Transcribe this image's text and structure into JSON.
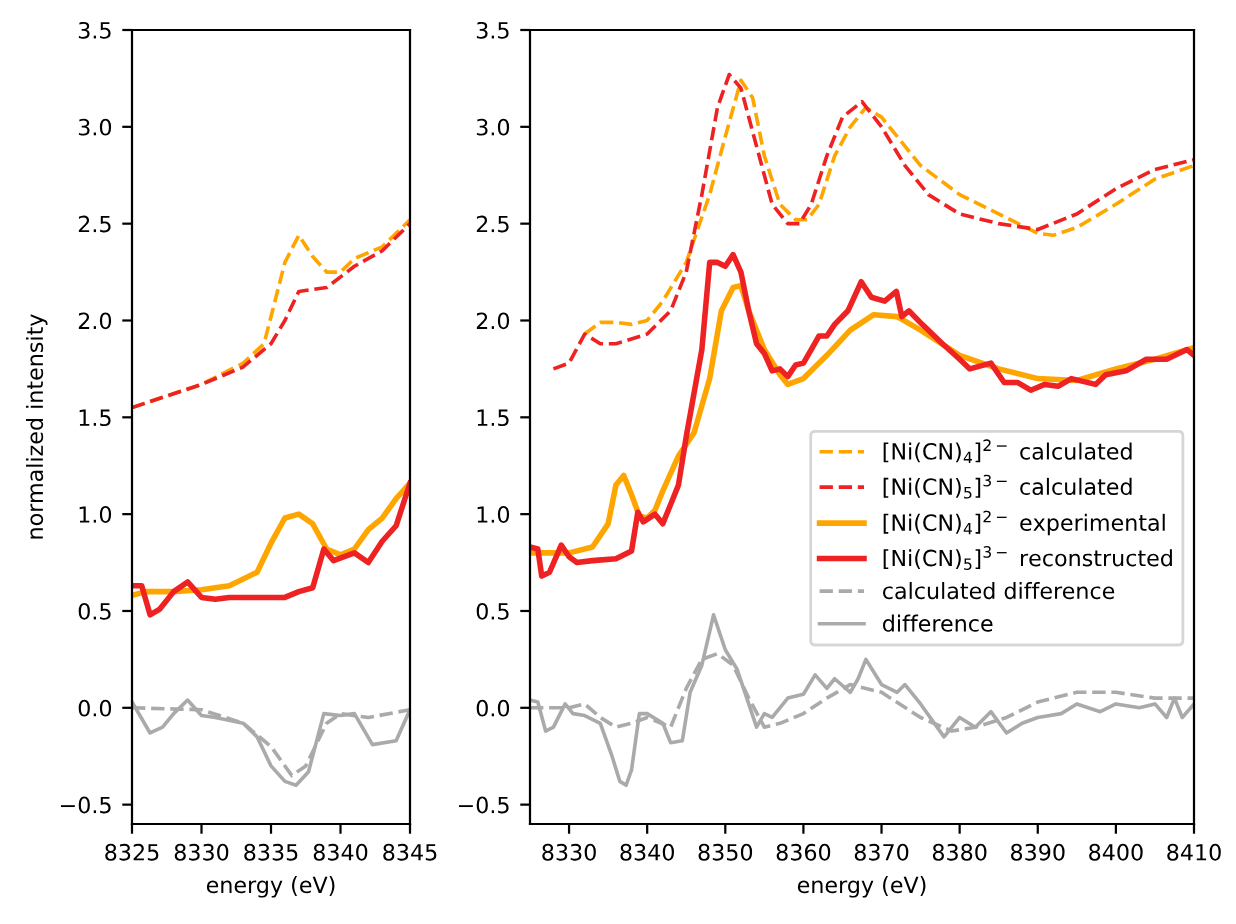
{
  "chart_data": [
    {
      "type": "line",
      "xlabel": "energy (eV)",
      "ylabel": "normalized intensity",
      "xlim": [
        8325,
        8345
      ],
      "xticks": [
        8325,
        8330,
        8335,
        8340,
        8345
      ],
      "ylim": [
        -0.6,
        3.5
      ],
      "yticks": [
        {
          "value": -0.5,
          "label": "−0.5"
        },
        {
          "value": 0,
          "label": "0.0"
        },
        0.5,
        {
          "value": 1,
          "label": "1.0"
        },
        1.5,
        {
          "value": 2,
          "label": "2.0"
        },
        2.5,
        {
          "value": 3,
          "label": "3.0"
        },
        3.5
      ],
      "grid": false,
      "legend": false,
      "series": [
        {
          "color": "#ffa500",
          "line_style": "dashed",
          "x": [
            8325,
            8330,
            8333,
            8334.5,
            8336,
            8337,
            8338,
            8339,
            8340,
            8341,
            8343,
            8345
          ],
          "values": [
            1.55,
            1.67,
            1.78,
            1.88,
            2.3,
            2.44,
            2.33,
            2.25,
            2.25,
            2.32,
            2.38,
            2.52
          ]
        },
        {
          "color": "#ee2222",
          "line_style": "dashed",
          "x": [
            8325,
            8330,
            8333,
            8335,
            8336,
            8337,
            8339,
            8341,
            8343,
            8345
          ],
          "values": [
            1.55,
            1.67,
            1.76,
            1.88,
            2.0,
            2.15,
            2.17,
            2.28,
            2.36,
            2.5
          ]
        },
        {
          "color": "#ffa500",
          "line_style": "solid",
          "x": [
            8325,
            8326,
            8328,
            8330,
            8332,
            8334,
            8335,
            8336,
            8337,
            8338,
            8339,
            8340,
            8341,
            8342,
            8343,
            8344,
            8345
          ],
          "values": [
            0.58,
            0.6,
            0.6,
            0.61,
            0.63,
            0.7,
            0.85,
            0.98,
            1.0,
            0.95,
            0.82,
            0.79,
            0.82,
            0.92,
            0.98,
            1.08,
            1.16
          ]
        },
        {
          "color": "#ee2222",
          "line_style": "solid",
          "x": [
            8325,
            8325.7,
            8326.3,
            8327,
            8328,
            8329,
            8330,
            8331,
            8332,
            8334,
            8336,
            8337,
            8338,
            8338.8,
            8339.5,
            8341,
            8342,
            8343,
            8344,
            8345
          ],
          "values": [
            0.63,
            0.63,
            0.48,
            0.51,
            0.6,
            0.65,
            0.57,
            0.56,
            0.57,
            0.57,
            0.57,
            0.6,
            0.62,
            0.82,
            0.76,
            0.8,
            0.75,
            0.86,
            0.94,
            1.16
          ]
        },
        {
          "color": "#aaaaaa",
          "line_style": "dashed",
          "x": [
            8325,
            8330,
            8333,
            8335,
            8336.5,
            8337.5,
            8339,
            8340,
            8342,
            8345
          ],
          "values": [
            0.0,
            -0.01,
            -0.08,
            -0.2,
            -0.35,
            -0.3,
            -0.08,
            -0.03,
            -0.05,
            -0.01
          ]
        },
        {
          "color": "#aaaaaa",
          "line_style": "solid",
          "x": [
            8325,
            8326.3,
            8327.2,
            8328,
            8329,
            8330,
            8331,
            8333,
            8334,
            8335,
            8336,
            8336.8,
            8337.7,
            8338.8,
            8340,
            8341,
            8342.3,
            8344,
            8345
          ],
          "values": [
            0.03,
            -0.13,
            -0.1,
            -0.03,
            0.04,
            -0.04,
            -0.05,
            -0.08,
            -0.15,
            -0.3,
            -0.38,
            -0.4,
            -0.33,
            -0.03,
            -0.04,
            -0.03,
            -0.19,
            -0.17,
            -0.01
          ]
        }
      ]
    },
    {
      "type": "line",
      "xlabel": "energy (eV)",
      "xlim": [
        8325,
        8410
      ],
      "xticks": [
        8330,
        8340,
        8350,
        8360,
        8370,
        8380,
        8390,
        8400,
        8410
      ],
      "ylim": [
        -0.6,
        3.5
      ],
      "yticks": [
        {
          "value": -0.5,
          "label": "−0.5"
        },
        {
          "value": 0,
          "label": "0.0"
        },
        0.5,
        {
          "value": 1,
          "label": "1.0"
        },
        1.5,
        {
          "value": 2,
          "label": "2.0"
        },
        2.5,
        {
          "value": 3,
          "label": "3.0"
        },
        3.5
      ],
      "grid": false,
      "legend": "right",
      "series": [
        {
          "name": "[Ni(CN)$_{4}$]$^{2−}$ calculated",
          "color": "#ffa500",
          "line_style": "dashed",
          "x": [
            8332,
            8334,
            8336,
            8338,
            8340,
            8342,
            8345,
            8348,
            8350,
            8352,
            8353.5,
            8355,
            8357,
            8359,
            8360.5,
            8362,
            8364,
            8366,
            8368,
            8370,
            8375,
            8380,
            8385,
            8390,
            8392,
            8395,
            8400,
            8405,
            8410
          ],
          "values": [
            1.93,
            1.99,
            1.99,
            1.98,
            2.0,
            2.1,
            2.3,
            2.65,
            2.95,
            3.24,
            3.15,
            2.85,
            2.6,
            2.52,
            2.52,
            2.6,
            2.85,
            3.0,
            3.1,
            3.05,
            2.8,
            2.65,
            2.55,
            2.45,
            2.44,
            2.48,
            2.6,
            2.73,
            2.8
          ]
        },
        {
          "name": "[Ni(CN)$_{5}$]$^{3−}$ calculated",
          "color": "#ee2222",
          "line_style": "dashed",
          "x": [
            8328,
            8330,
            8332,
            8334,
            8336,
            8340,
            8343,
            8345,
            8347,
            8349,
            8350.5,
            8352,
            8354,
            8356,
            8358,
            8359.5,
            8361,
            8363,
            8365,
            8367.5,
            8370,
            8373,
            8376,
            8380,
            8385,
            8390,
            8395,
            8400,
            8405,
            8410
          ],
          "values": [
            1.75,
            1.78,
            1.93,
            1.88,
            1.88,
            1.93,
            2.05,
            2.25,
            2.65,
            3.1,
            3.27,
            3.2,
            2.9,
            2.6,
            2.5,
            2.5,
            2.6,
            2.85,
            3.05,
            3.13,
            3.0,
            2.8,
            2.65,
            2.55,
            2.5,
            2.47,
            2.55,
            2.68,
            2.78,
            2.83
          ]
        },
        {
          "name": "[Ni(CN)$_{4}$]$^{2−}$ experimental",
          "color": "#ffa500",
          "line_style": "solid",
          "x": [
            8325,
            8328,
            8330,
            8333,
            8335,
            8336,
            8337,
            8338,
            8339,
            8340,
            8341,
            8342,
            8344,
            8346,
            8348,
            8349.5,
            8351,
            8352,
            8353,
            8355,
            8357,
            8358,
            8360,
            8363,
            8366,
            8369,
            8372,
            8375,
            8380,
            8385,
            8390,
            8395,
            8400,
            8405,
            8410
          ],
          "values": [
            0.8,
            0.8,
            0.8,
            0.83,
            0.95,
            1.15,
            1.2,
            1.1,
            0.99,
            0.98,
            1.02,
            1.12,
            1.3,
            1.42,
            1.7,
            2.05,
            2.17,
            2.18,
            2.05,
            1.85,
            1.72,
            1.67,
            1.7,
            1.82,
            1.95,
            2.03,
            2.02,
            1.95,
            1.82,
            1.75,
            1.7,
            1.69,
            1.75,
            1.8,
            1.86
          ]
        },
        {
          "name": "[Ni(CN)$_{5}$]$^{3−}$ reconstructed",
          "color": "#ee2222",
          "line_style": "solid",
          "x": [
            8325,
            8326,
            8326.5,
            8327.5,
            8329,
            8330,
            8331,
            8333,
            8336,
            8338,
            8338.8,
            8339.5,
            8341,
            8342,
            8343,
            8344,
            8345,
            8347,
            8348,
            8349,
            8350,
            8351,
            8352,
            8353,
            8354,
            8355,
            8356,
            8357,
            8358,
            8359,
            8360,
            8361,
            8362,
            8363,
            8364,
            8365.7,
            8367.4,
            8368.7,
            8370.4,
            8371.9,
            8372.6,
            8373.5,
            8375.2,
            8377.8,
            8380,
            8381.3,
            8384,
            8385.7,
            8387.4,
            8389.1,
            8390.9,
            8392.6,
            8394.3,
            8397.4,
            8398.7,
            8401.3,
            8403.9,
            8406.5,
            8409.1,
            8410
          ],
          "values": [
            0.83,
            0.82,
            0.68,
            0.7,
            0.84,
            0.78,
            0.75,
            0.76,
            0.77,
            0.81,
            1.01,
            0.96,
            1.0,
            0.95,
            1.05,
            1.15,
            1.4,
            1.85,
            2.3,
            2.3,
            2.28,
            2.34,
            2.25,
            2.05,
            1.88,
            1.83,
            1.74,
            1.75,
            1.71,
            1.77,
            1.78,
            1.85,
            1.92,
            1.92,
            1.98,
            2.05,
            2.2,
            2.12,
            2.1,
            2.15,
            2.02,
            2.05,
            1.98,
            1.88,
            1.8,
            1.75,
            1.78,
            1.68,
            1.68,
            1.64,
            1.67,
            1.66,
            1.7,
            1.67,
            1.72,
            1.74,
            1.8,
            1.8,
            1.85,
            1.82
          ]
        },
        {
          "name": "calculated difference",
          "color": "#aaaaaa",
          "line_style": "dashed",
          "x": [
            8325,
            8330,
            8332,
            8334,
            8336,
            8338,
            8340,
            8343,
            8345,
            8347,
            8349,
            8351,
            8353,
            8355,
            8357,
            8360,
            8363,
            8366,
            8370,
            8375,
            8379,
            8382,
            8386,
            8390,
            8395,
            8400,
            8405,
            8410
          ],
          "values": [
            0.0,
            0.0,
            0.02,
            -0.05,
            -0.1,
            -0.08,
            -0.05,
            -0.1,
            0.1,
            0.25,
            0.28,
            0.22,
            0.05,
            -0.1,
            -0.08,
            -0.03,
            0.05,
            0.12,
            0.08,
            -0.05,
            -0.12,
            -0.1,
            -0.05,
            0.03,
            0.08,
            0.08,
            0.05,
            0.05
          ]
        },
        {
          "name": "difference",
          "color": "#aaaaaa",
          "line_style": "solid",
          "x": [
            8325,
            8326,
            8327,
            8328,
            8329.5,
            8330.5,
            8332,
            8334,
            8335.5,
            8336.5,
            8337.3,
            8338,
            8339,
            8340,
            8342,
            8343,
            8344.5,
            8345.5,
            8347,
            8348.5,
            8350,
            8351.5,
            8353,
            8354,
            8355,
            8356,
            8358,
            8360,
            8361.5,
            8363,
            8364,
            8366,
            8367,
            8368,
            8370,
            8372,
            8373,
            8375,
            8378,
            8380,
            8382,
            8384,
            8386,
            8388,
            8390,
            8393,
            8395,
            8398,
            8400,
            8403,
            8405,
            8406.5,
            8407.5,
            8408.5,
            8410
          ],
          "values": [
            0.04,
            0.03,
            -0.12,
            -0.1,
            0.02,
            -0.03,
            -0.04,
            -0.08,
            -0.25,
            -0.38,
            -0.4,
            -0.32,
            -0.03,
            -0.03,
            -0.08,
            -0.18,
            -0.17,
            0.08,
            0.22,
            0.48,
            0.3,
            0.2,
            0.02,
            -0.1,
            -0.03,
            -0.05,
            0.05,
            0.07,
            0.17,
            0.1,
            0.15,
            0.08,
            0.15,
            0.25,
            0.12,
            0.08,
            0.12,
            0.02,
            -0.15,
            -0.05,
            -0.1,
            -0.02,
            -0.13,
            -0.08,
            -0.05,
            -0.03,
            0.02,
            -0.02,
            0.02,
            0.0,
            0.02,
            -0.05,
            0.05,
            -0.05,
            0.02
          ]
        }
      ]
    }
  ]
}
